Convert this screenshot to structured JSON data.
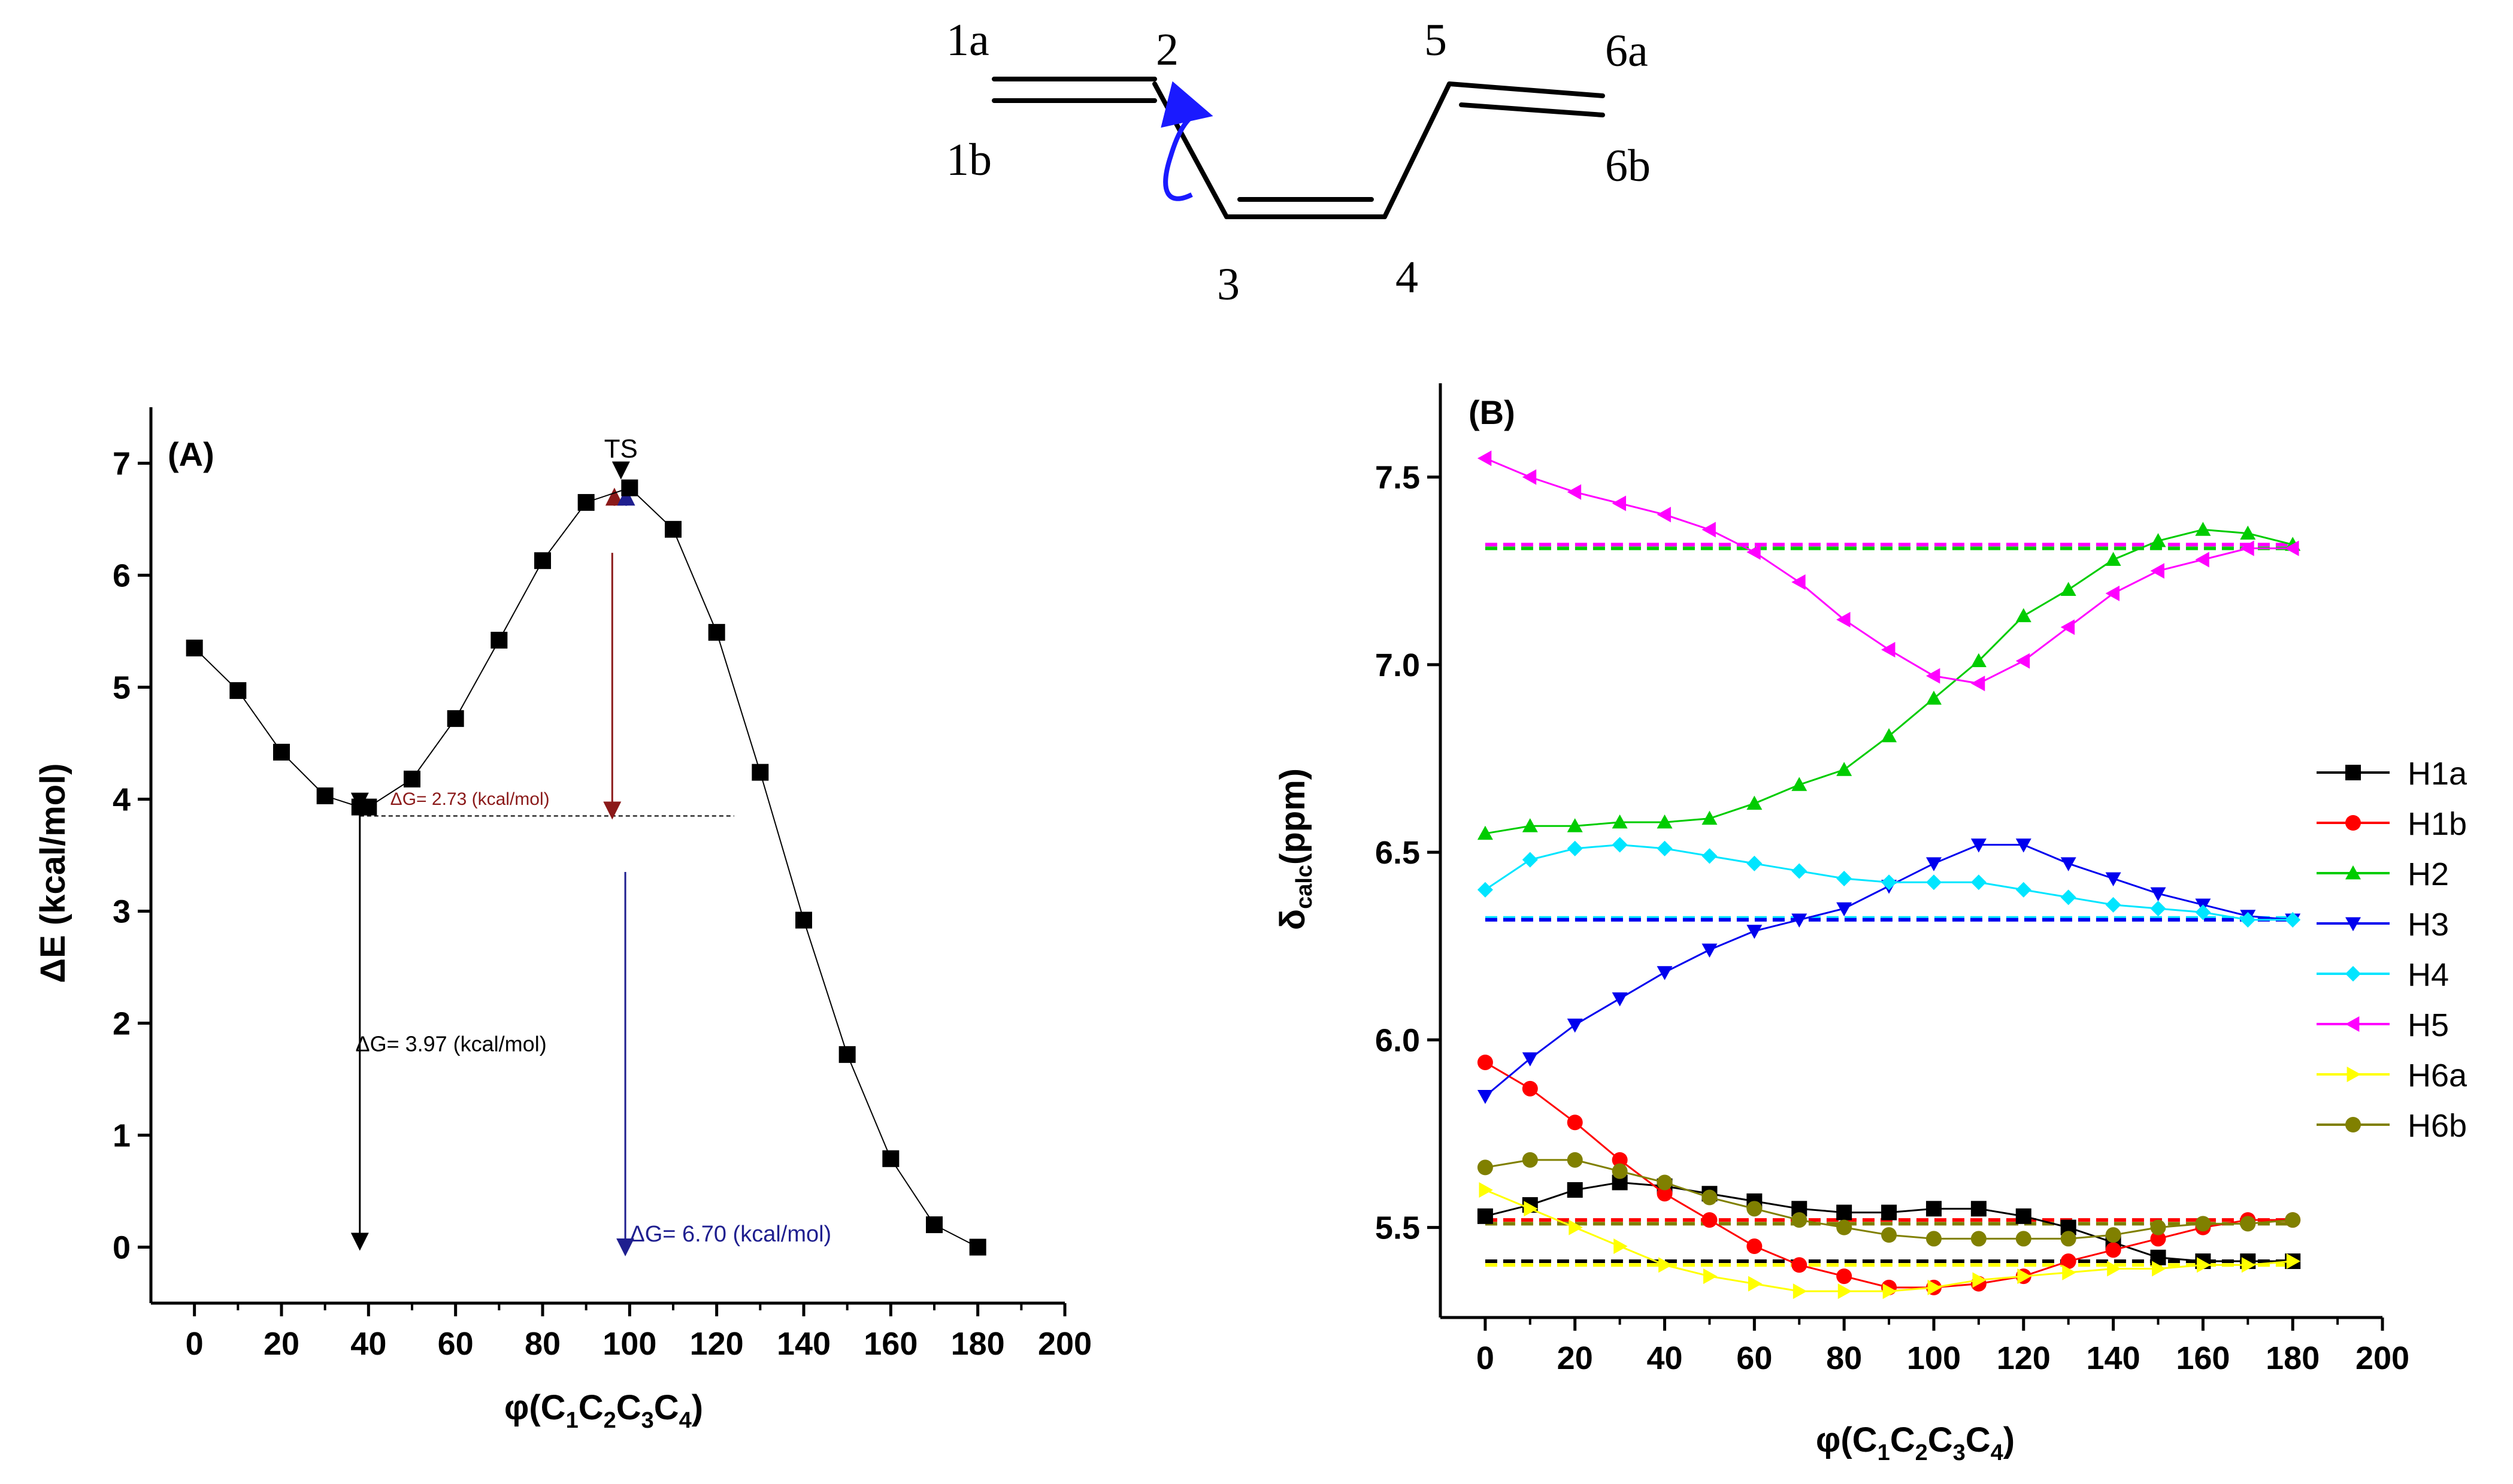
{
  "molecule": {
    "labels": {
      "c1a": "1a",
      "c1b": "1b",
      "c2": "2",
      "c3": "3",
      "c4": "4",
      "c5": "5",
      "c6a": "6a",
      "c6b": "6b"
    }
  },
  "chart_data": [
    {
      "type": "line",
      "panel_label": "(A)",
      "title": "",
      "xlabel": "φ(C1C2C3C4)",
      "xlabel_parts": {
        "phi": "φ(C",
        "s1": "1",
        "c2": "C",
        "s2": "2",
        "c3": "C",
        "s3": "3",
        "c4": "C",
        "s4": "4",
        "close": ")"
      },
      "ylabel": "ΔE (kcal/mol)",
      "xlim": [
        -10,
        200
      ],
      "ylim": [
        -0.5,
        7.5
      ],
      "xticks": [
        0,
        20,
        40,
        60,
        80,
        100,
        120,
        140,
        160,
        180,
        200
      ],
      "yticks": [
        0,
        1,
        2,
        3,
        4,
        5,
        6,
        7
      ],
      "series": [
        {
          "name": "ΔE",
          "color": "#000000",
          "marker": "square",
          "x": [
            0,
            10,
            20,
            30,
            38,
            40,
            50,
            60,
            70,
            80,
            90,
            100,
            110,
            120,
            130,
            140,
            150,
            160,
            170,
            180
          ],
          "y": [
            5.35,
            4.97,
            4.42,
            4.03,
            3.93,
            3.93,
            4.18,
            4.72,
            5.42,
            6.13,
            6.65,
            6.78,
            6.41,
            5.49,
            4.24,
            2.92,
            1.72,
            0.79,
            0.2,
            0.0
          ]
        }
      ],
      "ts_peak": {
        "x": 98,
        "y": 6.78
      },
      "annotations": [
        {
          "text": "TS",
          "x": 98,
          "y": 7.05,
          "color": "#000000"
        },
        {
          "text": "ΔG= 2.73 (kcal/mol)",
          "x": 45,
          "y": 3.95,
          "color": "#8b1a1a"
        },
        {
          "text": "ΔG= 3.97 (kcal/mol)",
          "x": 37,
          "y": 1.75,
          "color": "#000000"
        },
        {
          "text": "ΔG= 6.70 (kcal/mol)",
          "x": 100,
          "y": 0.05,
          "color": "#1f1f8f"
        }
      ],
      "reference_line": {
        "y": 3.85,
        "x_start": 38,
        "x_end": 124
      },
      "arrows": [
        {
          "x": 38,
          "from": 3.93,
          "to": 0.0,
          "color": "#000000",
          "both": true
        },
        {
          "x": 96,
          "from": 6.2,
          "to": 3.85,
          "color": "#8b1a1a",
          "both": false
        },
        {
          "x": 96.5,
          "from": 6.62,
          "to": 6.75,
          "color": "#8b1a1a",
          "both": false
        },
        {
          "x": 99,
          "from": 3.35,
          "to": -0.05,
          "color": "#1f1f8f",
          "both": false
        },
        {
          "x": 99.2,
          "from": 6.62,
          "to": 6.75,
          "color": "#1f1f8f",
          "both": false
        }
      ]
    },
    {
      "type": "line",
      "panel_label": "(B)",
      "title": "",
      "xlabel": "φ(C1C2C3C4)",
      "xlabel_parts": {
        "phi": "φ(C",
        "s1": "1",
        "c2": "C",
        "s2": "2",
        "c3": "C",
        "s3": "3",
        "c4": "C",
        "s4": "4",
        "close": ")"
      },
      "ylabel": "δcalc(ppm)",
      "ylabel_parts": {
        "delta": "δ",
        "sub": "calc",
        "unit": "(ppm)"
      },
      "xlim": [
        -10,
        200
      ],
      "ylim": [
        5.26,
        7.75
      ],
      "xticks": [
        0,
        20,
        40,
        60,
        80,
        100,
        120,
        140,
        160,
        180,
        200
      ],
      "yticks": [
        5.5,
        6.0,
        6.5,
        7.0,
        7.5
      ],
      "x": [
        0,
        10,
        20,
        30,
        40,
        50,
        60,
        70,
        80,
        90,
        100,
        110,
        120,
        130,
        140,
        150,
        160,
        170,
        180
      ],
      "series": [
        {
          "name": "H1a",
          "color": "#000000",
          "marker": "square",
          "values": [
            5.53,
            5.56,
            5.6,
            5.62,
            5.61,
            5.59,
            5.57,
            5.55,
            5.54,
            5.54,
            5.55,
            5.55,
            5.53,
            5.5,
            5.46,
            5.42,
            5.41,
            5.41,
            5.41
          ]
        },
        {
          "name": "H1b",
          "color": "#ff0000",
          "marker": "circle",
          "values": [
            5.94,
            5.87,
            5.78,
            5.68,
            5.59,
            5.52,
            5.45,
            5.4,
            5.37,
            5.34,
            5.34,
            5.35,
            5.37,
            5.41,
            5.44,
            5.47,
            5.5,
            5.52,
            5.52
          ]
        },
        {
          "name": "H2",
          "color": "#00cc00",
          "marker": "triangle-up",
          "values": [
            6.55,
            6.57,
            6.57,
            6.58,
            6.58,
            6.59,
            6.63,
            6.68,
            6.72,
            6.81,
            6.91,
            7.01,
            7.13,
            7.2,
            7.28,
            7.33,
            7.36,
            7.35,
            7.32
          ]
        },
        {
          "name": "H3",
          "color": "#0000ee",
          "marker": "triangle-down",
          "values": [
            5.85,
            5.95,
            6.04,
            6.11,
            6.18,
            6.24,
            6.29,
            6.32,
            6.35,
            6.41,
            6.47,
            6.52,
            6.52,
            6.47,
            6.43,
            6.39,
            6.36,
            6.33,
            6.32
          ]
        },
        {
          "name": "H4",
          "color": "#00e5ff",
          "marker": "diamond",
          "values": [
            6.4,
            6.48,
            6.51,
            6.52,
            6.51,
            6.49,
            6.47,
            6.45,
            6.43,
            6.42,
            6.42,
            6.42,
            6.4,
            6.38,
            6.36,
            6.35,
            6.34,
            6.32,
            6.32
          ]
        },
        {
          "name": "H5",
          "color": "#ff00ff",
          "marker": "triangle-left",
          "values": [
            7.55,
            7.5,
            7.46,
            7.43,
            7.4,
            7.36,
            7.3,
            7.22,
            7.12,
            7.04,
            6.97,
            6.95,
            7.01,
            7.1,
            7.19,
            7.25,
            7.28,
            7.31,
            7.31
          ]
        },
        {
          "name": "H6a",
          "color": "#ffff00",
          "marker": "triangle-right",
          "values": [
            5.6,
            5.55,
            5.5,
            5.45,
            5.4,
            5.37,
            5.35,
            5.33,
            5.33,
            5.33,
            5.34,
            5.36,
            5.37,
            5.38,
            5.39,
            5.39,
            5.4,
            5.4,
            5.41
          ]
        },
        {
          "name": "H6b",
          "color": "#808000",
          "marker": "circle",
          "values": [
            5.66,
            5.68,
            5.68,
            5.65,
            5.62,
            5.58,
            5.55,
            5.52,
            5.5,
            5.48,
            5.47,
            5.47,
            5.47,
            5.47,
            5.48,
            5.5,
            5.51,
            5.51,
            5.52
          ]
        }
      ],
      "reference_lines": [
        {
          "y": 7.32,
          "color": "#ff00ff"
        },
        {
          "y": 7.31,
          "color": "#00cc00"
        },
        {
          "y": 6.325,
          "color": "#00e5ff"
        },
        {
          "y": 6.32,
          "color": "#0000ee"
        },
        {
          "y": 5.52,
          "color": "#ff0000"
        },
        {
          "y": 5.51,
          "color": "#808000"
        },
        {
          "y": 5.41,
          "color": "#000000"
        },
        {
          "y": 5.4,
          "color": "#ffff00"
        }
      ],
      "legend_position": "right"
    }
  ]
}
